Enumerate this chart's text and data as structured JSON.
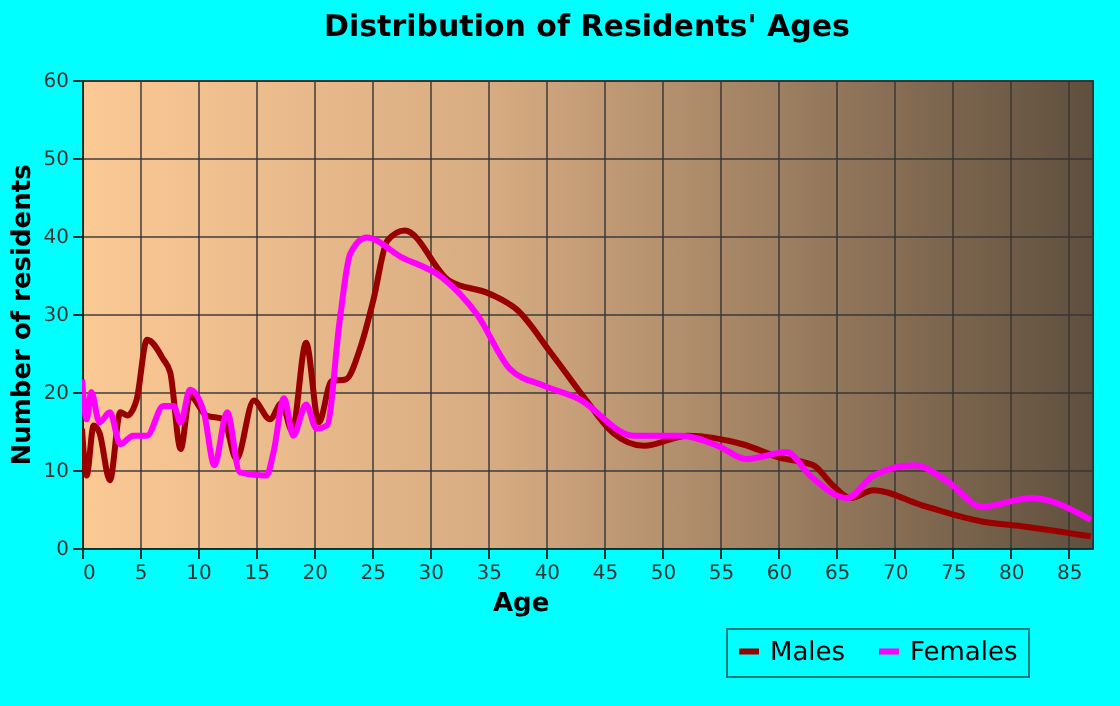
{
  "chart_data": {
    "type": "line",
    "title": "Distribution of Residents' Ages",
    "xlabel": "Age",
    "ylabel": "Number of residents",
    "xlim": [
      0,
      87
    ],
    "xticks": [
      0,
      5,
      10,
      15,
      20,
      25,
      30,
      35,
      40,
      45,
      50,
      55,
      60,
      65,
      70,
      75,
      80,
      85
    ],
    "ylim": [
      0,
      60
    ],
    "yticks": [
      0,
      10,
      20,
      30,
      40,
      50,
      60
    ],
    "grid": true,
    "legend": "bottom right",
    "marker": "none",
    "line_style": "solid",
    "series": [
      {
        "name": "Males",
        "color": "#990000",
        "x": [
          0,
          0.4,
          1,
          1.5,
          2.4,
          3.3,
          3.9,
          4.7,
          5.6,
          7,
          7.6,
          8.5,
          9.3,
          10.7,
          12.2,
          13.3,
          14.8,
          16.2,
          17.2,
          18.1,
          19.3,
          20.4,
          21.5,
          22.7,
          24,
          25.1,
          26.3,
          27.8,
          31.6,
          35.1,
          37.5,
          40.4,
          43.4,
          45.7,
          48.4,
          52.2,
          56.9,
          60.1,
          63,
          64.7,
          66.2,
          68.2,
          72.3,
          77.5,
          80.9,
          86.9
        ],
        "values": [
          15.3,
          9.3,
          15.7,
          14.8,
          8.7,
          17.4,
          17,
          19,
          26.7,
          24.2,
          22.5,
          12.7,
          19.5,
          17,
          16.5,
          11.4,
          18.9,
          16.5,
          18.6,
          15,
          26.3,
          16.1,
          21.4,
          21.6,
          25.8,
          31.8,
          39.4,
          40.7,
          34.3,
          32.6,
          30.5,
          25,
          19,
          14.8,
          13.1,
          14.4,
          13.3,
          11.6,
          10.6,
          8,
          6.4,
          7.4,
          5.5,
          3.4,
          2.8,
          1.5
        ]
      },
      {
        "name": "Females",
        "color": "#ff00ff",
        "x": [
          0,
          0.4,
          0.8,
          1.5,
          2.4,
          3.3,
          4.4,
          5.6,
          7,
          7.9,
          8.5,
          9.3,
          10.5,
          11.4,
          12.5,
          13.6,
          15.9,
          16.5,
          17.4,
          18.2,
          19.3,
          20.2,
          21.1,
          22.2,
          23.1,
          24.5,
          27.5,
          31,
          34,
          36.9,
          39.8,
          42.8,
          47.5,
          51.6,
          54.9,
          57.2,
          60.7,
          62.7,
          65.9,
          68.2,
          71.7,
          74.6,
          77.5,
          81.8,
          86.9
        ],
        "values": [
          21.6,
          16.5,
          20,
          16.1,
          17.4,
          13.3,
          14.4,
          14.4,
          18.2,
          18.2,
          16.1,
          20.3,
          17.4,
          10.6,
          17.4,
          9.7,
          9.3,
          12.3,
          19.2,
          14.4,
          18.4,
          15.3,
          15.7,
          29.2,
          37.7,
          39.8,
          37.3,
          34.7,
          30,
          22.9,
          20.8,
          19.1,
          14.4,
          14.4,
          13,
          11.4,
          12.3,
          9.3,
          6.4,
          9.3,
          10.6,
          8.5,
          5.3,
          6.4,
          3.6
        ]
      }
    ]
  }
}
